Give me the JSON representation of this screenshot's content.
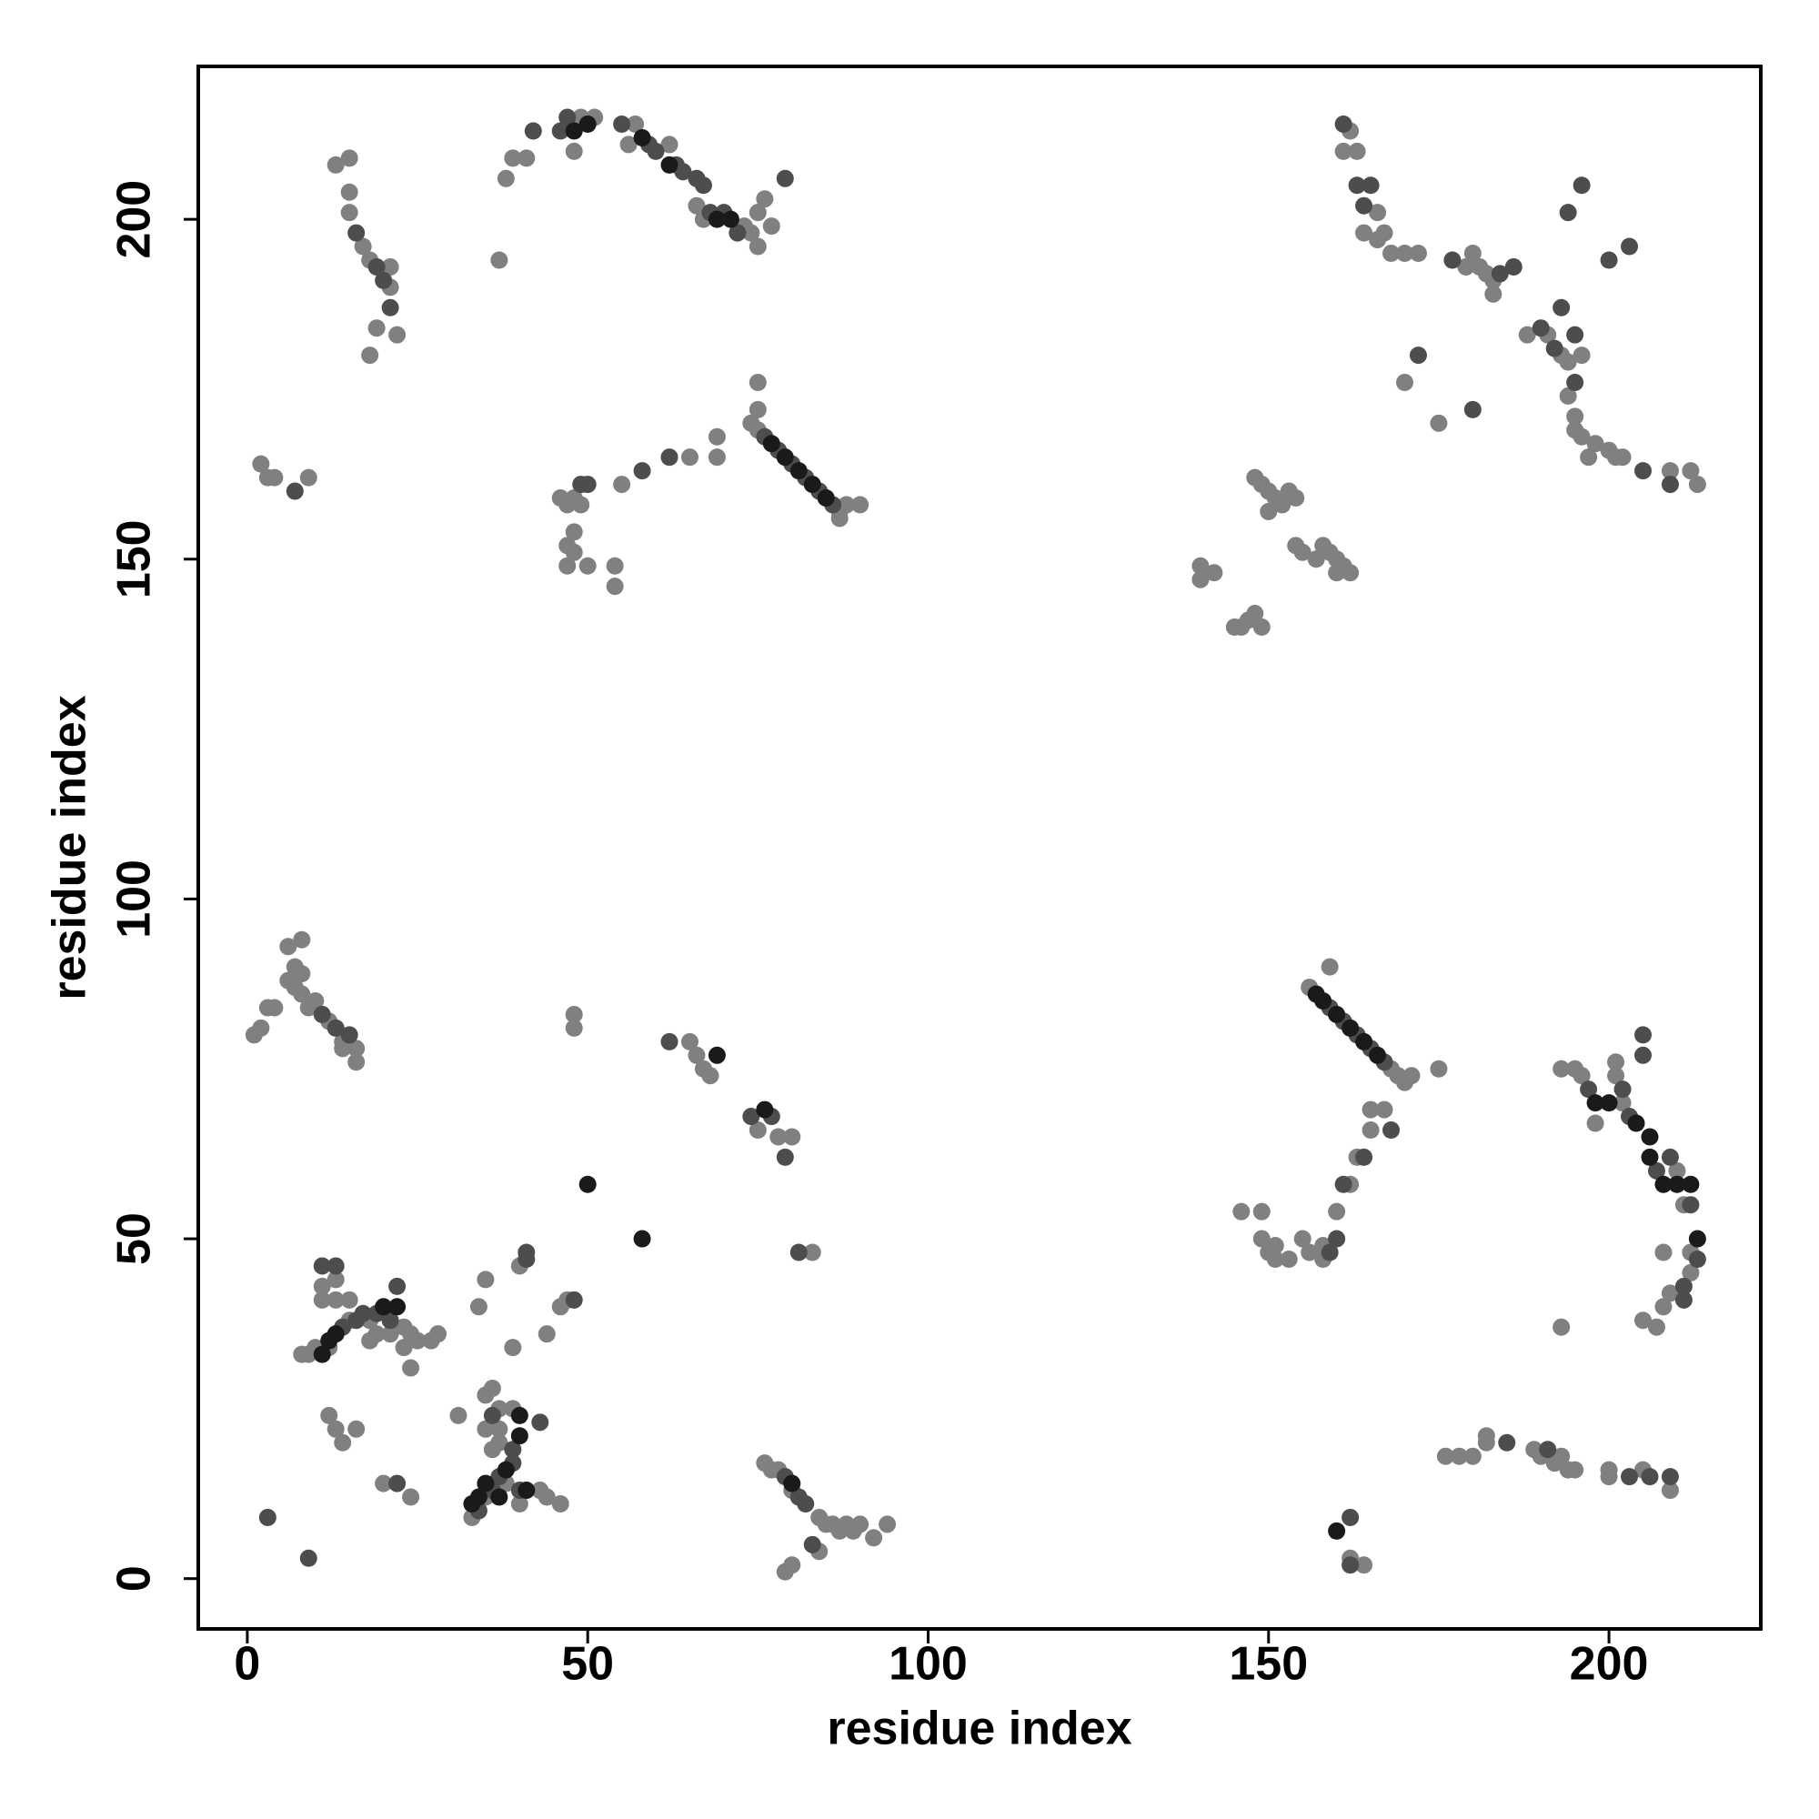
{
  "chart_data": {
    "type": "scatter",
    "xlabel": "residue index",
    "ylabel": "residue index",
    "xlim": [
      -7.2,
      222.3
    ],
    "ylim": [
      -7.4,
      222.5
    ],
    "xticks": [
      0,
      50,
      100,
      150,
      200
    ],
    "yticks": [
      0,
      50,
      100,
      150,
      200
    ],
    "grid": false,
    "series": [
      {
        "color": "#808080",
        "x": [
          37,
          38,
          39,
          41,
          48,
          49,
          51,
          56,
          57,
          62,
          66,
          67,
          73,
          74,
          75,
          75,
          76,
          77,
          13,
          15,
          15,
          15,
          17,
          18,
          21,
          21,
          19,
          18,
          22,
          75,
          75,
          74,
          75,
          87,
          88,
          90,
          87,
          69,
          69,
          65,
          55,
          48,
          46,
          47,
          49,
          48,
          47,
          48,
          47,
          50,
          54,
          54,
          2,
          3,
          4,
          9,
          162,
          161,
          163,
          166,
          164,
          166,
          167,
          168,
          170,
          172,
          179,
          180,
          181,
          182,
          183,
          183,
          170,
          175,
          188,
          191,
          193,
          194,
          196,
          194,
          195,
          195,
          196,
          197,
          198,
          200,
          201,
          202,
          209,
          212,
          213,
          140,
          140,
          142,
          145,
          146,
          147,
          148,
          149,
          148,
          149,
          150,
          151,
          152,
          153,
          154,
          150,
          154,
          155,
          157,
          158,
          159,
          160,
          160,
          161,
          162,
          156,
          168,
          169,
          170,
          171,
          175,
          159,
          167,
          165,
          165,
          163,
          162,
          160,
          158,
          158,
          156,
          155,
          153,
          151,
          150,
          149,
          146,
          149,
          151,
          193,
          195,
          196,
          198,
          201,
          201,
          202,
          210,
          211,
          212,
          212,
          209,
          208,
          207,
          205,
          208,
          193,
          176,
          178,
          180,
          182,
          182,
          189,
          190,
          192,
          193,
          194,
          195,
          200,
          200,
          205,
          209,
          162,
          164,
          8,
          9,
          10,
          12,
          15,
          18,
          23,
          24,
          25,
          27,
          28,
          23,
          24,
          18,
          19,
          21,
          11,
          11,
          13,
          13,
          15,
          31,
          33,
          35,
          38,
          40,
          39,
          37,
          36,
          35,
          36,
          35,
          37,
          43,
          44,
          46,
          37,
          12,
          13,
          14,
          16,
          20,
          24,
          34,
          35,
          39,
          40,
          44,
          46,
          47,
          48,
          48,
          65,
          66,
          67,
          68,
          75,
          78,
          80,
          83,
          1,
          2,
          3,
          4,
          6,
          6,
          7,
          7,
          8,
          8,
          8,
          9,
          10,
          12,
          14,
          16,
          16,
          14,
          76,
          77,
          78,
          80,
          84,
          85,
          86,
          87,
          88,
          89,
          90,
          92,
          94,
          79,
          80,
          84
        ],
        "values": [
          194,
          206,
          209,
          209,
          210,
          215,
          215,
          211,
          214,
          211,
          202,
          200,
          199,
          198,
          196,
          201,
          203,
          199,
          208,
          209,
          204,
          201,
          196,
          194,
          193,
          190,
          184,
          180,
          183,
          176,
          172,
          170,
          169,
          157,
          158,
          158,
          156,
          165,
          168,
          165,
          161,
          159,
          159,
          158,
          158,
          154,
          152,
          151,
          149,
          149,
          149,
          146,
          164,
          162,
          162,
          162,
          213,
          210,
          210,
          201,
          198,
          197,
          198,
          195,
          195,
          195,
          193,
          195,
          193,
          192,
          191,
          189,
          176,
          170,
          183,
          183,
          180,
          179,
          180,
          174,
          171,
          169,
          168,
          165,
          167,
          166,
          165,
          165,
          163,
          163,
          161,
          147,
          149,
          148,
          140,
          140,
          141,
          142,
          140,
          162,
          161,
          160,
          159,
          158,
          160,
          159,
          157,
          152,
          151,
          150,
          152,
          151,
          150,
          148,
          149,
          148,
          87,
          75,
          74,
          73,
          74,
          75,
          90,
          69,
          69,
          66,
          62,
          58,
          54,
          47,
          49,
          48,
          50,
          47,
          47,
          48,
          50,
          54,
          54,
          49,
          75,
          75,
          74,
          67,
          74,
          76,
          70,
          60,
          55,
          48,
          45,
          42,
          40,
          37,
          38,
          48,
          37,
          18,
          18,
          18,
          21,
          20,
          19,
          18,
          17,
          18,
          16,
          16,
          16,
          15,
          16,
          13,
          3,
          2,
          33,
          33,
          34,
          34,
          38,
          38,
          37,
          36,
          35,
          35,
          36,
          34,
          31,
          35,
          36,
          36,
          41,
          43,
          44,
          41,
          41,
          24,
          9,
          12,
          14,
          11,
          25,
          25,
          19,
          27,
          28,
          22,
          22,
          13,
          12,
          11,
          20,
          24,
          22,
          20,
          22,
          14,
          12,
          40,
          44,
          34,
          46,
          36,
          40,
          41,
          81,
          83,
          79,
          77,
          75,
          74,
          66,
          65,
          65,
          48,
          80,
          81,
          84,
          84,
          88,
          93,
          90,
          87,
          94,
          89,
          86,
          84,
          85,
          82,
          79,
          78,
          76,
          78,
          17,
          16,
          16,
          13,
          9,
          8,
          8,
          7,
          8,
          7,
          8,
          6,
          8,
          1,
          2,
          4
        ]
      },
      {
        "color": "#4d4d4d",
        "x": [
          42,
          46,
          47,
          55,
          59,
          60,
          63,
          64,
          66,
          67,
          68,
          70,
          72,
          79,
          16,
          19,
          20,
          21,
          76,
          78,
          80,
          82,
          84,
          86,
          62,
          58,
          49,
          50,
          7,
          161,
          163,
          165,
          164,
          184,
          186,
          172,
          180,
          190,
          192,
          193,
          195,
          195,
          205,
          209,
          196,
          194,
          200,
          203,
          177,
          159,
          161,
          163,
          165,
          167,
          168,
          164,
          161,
          160,
          159,
          197,
          202,
          203,
          207,
          209,
          212,
          213,
          211,
          211,
          205,
          205,
          14,
          16,
          17,
          19,
          21,
          22,
          11,
          13,
          34,
          36,
          37,
          39,
          39,
          36,
          43,
          40,
          41,
          41,
          48,
          62,
          74,
          77,
          79,
          81,
          11,
          13,
          15,
          79,
          81,
          82,
          83,
          3,
          9,
          22,
          162,
          162,
          203,
          206,
          191,
          185,
          209
        ],
        "values": [
          213,
          213,
          215,
          214,
          211,
          210,
          208,
          207,
          206,
          205,
          201,
          201,
          198,
          206,
          198,
          193,
          191,
          187,
          168,
          166,
          164,
          162,
          160,
          158,
          165,
          163,
          161,
          161,
          160,
          214,
          205,
          205,
          202,
          192,
          193,
          180,
          172,
          184,
          181,
          187,
          183,
          176,
          163,
          161,
          205,
          201,
          194,
          196,
          194,
          84,
          82,
          80,
          78,
          76,
          66,
          62,
          58,
          50,
          48,
          72,
          72,
          68,
          60,
          62,
          55,
          47,
          43,
          41,
          80,
          77,
          37,
          38,
          39,
          39,
          38,
          43,
          46,
          46,
          10,
          13,
          15,
          17,
          19,
          24,
          23,
          13,
          47,
          48,
          41,
          79,
          68,
          68,
          62,
          48,
          83,
          81,
          80,
          15,
          12,
          11,
          5,
          9,
          3,
          14,
          9,
          2,
          15,
          15,
          19,
          20,
          15
        ]
      },
      {
        "color": "#1a1a1a",
        "x": [
          48,
          50,
          58,
          62,
          69,
          71,
          77,
          79,
          81,
          83,
          85,
          157,
          158,
          160,
          162,
          164,
          166,
          198,
          200,
          204,
          206,
          206,
          208,
          210,
          212,
          213,
          11,
          12,
          13,
          20,
          22,
          33,
          34,
          35,
          37,
          38,
          40,
          40,
          50,
          58,
          69,
          76,
          80,
          41,
          160
        ],
        "values": [
          213,
          214,
          212,
          208,
          200,
          200,
          167,
          165,
          163,
          161,
          159,
          86,
          85,
          83,
          81,
          79,
          77,
          70,
          70,
          67,
          65,
          62,
          58,
          58,
          58,
          50,
          33,
          35,
          36,
          40,
          40,
          11,
          12,
          14,
          12,
          16,
          24,
          21,
          58,
          50,
          77,
          69,
          14,
          13,
          7
        ]
      }
    ]
  }
}
